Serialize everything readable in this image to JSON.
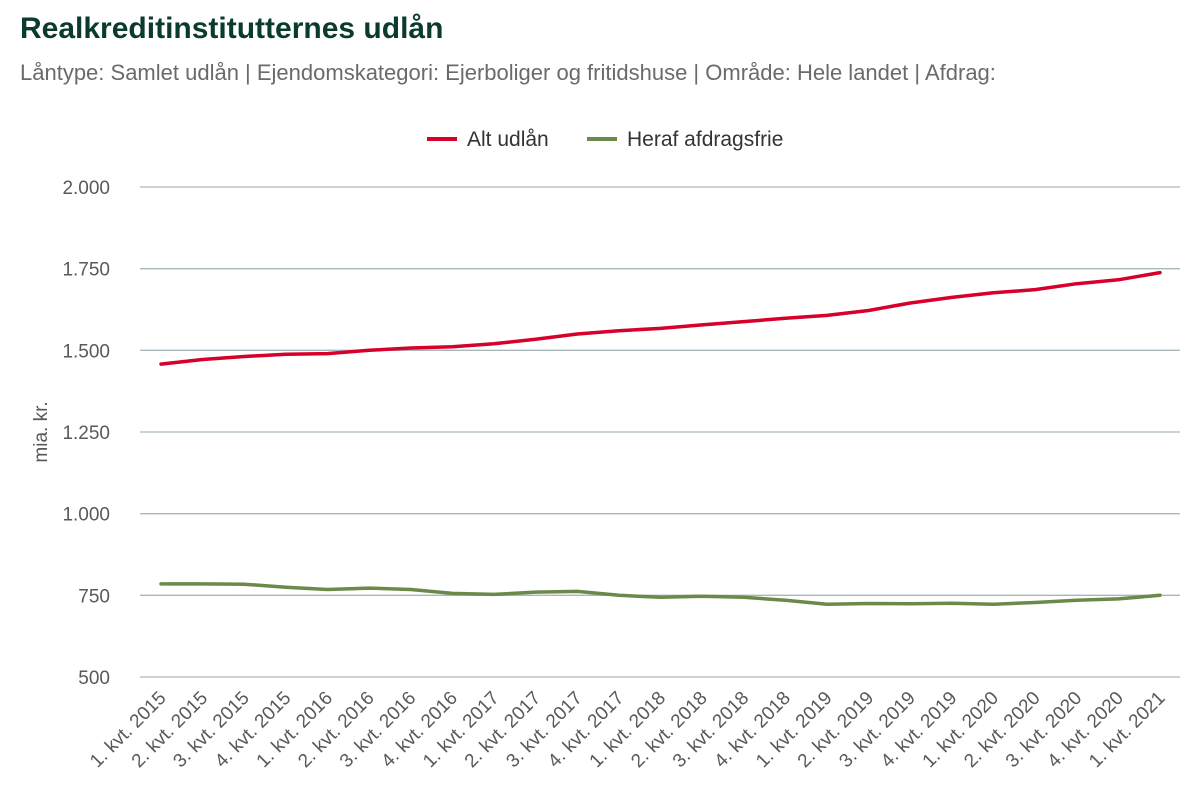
{
  "title": "Realkreditinstitutternes udlån",
  "subtitle": "Låntype: Samlet udlån | Ejendomskategori: Ejerboliger og fritidshuse | Område: Hele landet | Afdrag:",
  "colors": {
    "title": "#0b3a2e",
    "grid": "#a9b7bd",
    "text": "#595959"
  },
  "chart_data": {
    "type": "line",
    "title": "Realkreditinstitutternes udlån",
    "ylabel": "mia. kr.",
    "xlabel": "",
    "ylim": [
      500,
      2000
    ],
    "yticks": [
      500,
      750,
      1000,
      1250,
      1500,
      1750,
      2000
    ],
    "ytick_labels": [
      "500",
      "750",
      "1.000",
      "1.250",
      "1.500",
      "1.750",
      "2.000"
    ],
    "grid": true,
    "legend_position": "top-center",
    "categories": [
      "1. kvt. 2015",
      "2. kvt. 2015",
      "3. kvt. 2015",
      "4. kvt. 2015",
      "1. kvt. 2016",
      "2. kvt. 2016",
      "3. kvt. 2016",
      "4. kvt. 2016",
      "1. kvt. 2017",
      "2. kvt. 2017",
      "3. kvt. 2017",
      "4. kvt. 2017",
      "1. kvt. 2018",
      "2. kvt. 2018",
      "3. kvt. 2018",
      "4. kvt. 2018",
      "1. kvt. 2019",
      "2. kvt. 2019",
      "3. kvt. 2019",
      "4. kvt. 2019",
      "1. kvt. 2020",
      "2. kvt. 2020",
      "3. kvt. 2020",
      "4. kvt. 2020",
      "1. kvt. 2021"
    ],
    "series": [
      {
        "name": "Alt udlån",
        "color": "#d6002a",
        "values": [
          1458,
          1472,
          1481,
          1488,
          1490,
          1500,
          1507,
          1511,
          1520,
          1534,
          1550,
          1560,
          1567,
          1578,
          1588,
          1598,
          1607,
          1622,
          1645,
          1662,
          1676,
          1686,
          1704,
          1716,
          1738
        ]
      },
      {
        "name": "Heraf afdragsfrie",
        "color": "#6b8a4a",
        "values": [
          785,
          785,
          784,
          775,
          768,
          772,
          768,
          756,
          753,
          760,
          762,
          750,
          744,
          747,
          744,
          735,
          723,
          725,
          724,
          726,
          723,
          728,
          735,
          739,
          750
        ]
      }
    ]
  }
}
